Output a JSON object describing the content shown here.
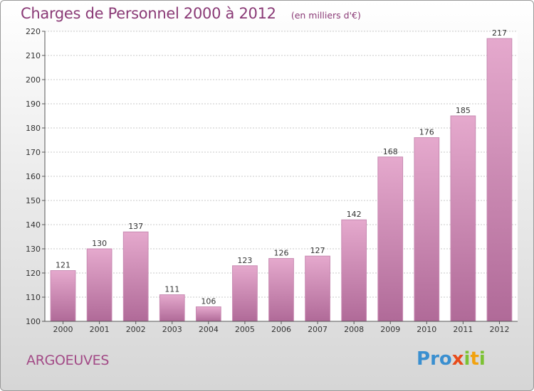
{
  "header": {
    "title": "Charges de Personnel 2000 à 2012",
    "unit": "(en milliers d'€)"
  },
  "footer": {
    "commune": "ARGOEUVES",
    "logo_text": "Proxiti",
    "logo_letters": [
      {
        "ch": "P",
        "color": "#3a8fd0"
      },
      {
        "ch": "r",
        "color": "#3a8fd0"
      },
      {
        "ch": "o",
        "color": "#3a8fd0"
      },
      {
        "ch": "x",
        "color": "#e84b1a"
      },
      {
        "ch": "i",
        "color": "#7cc233"
      },
      {
        "ch": "t",
        "color": "#f2a20f"
      },
      {
        "ch": "i",
        "color": "#7cc233"
      }
    ]
  },
  "colors": {
    "bar_top": "#e5a9cd",
    "bar_bottom": "#b06a98",
    "bar_edge": "#c88ab2",
    "axis": "#555555",
    "grid": "#c8c8c8",
    "plot_bg": "#ffffff",
    "text": "#333333",
    "title": "#8a3a76"
  },
  "chart_data": {
    "type": "bar",
    "title": "Charges de Personnel 2000 à 2012",
    "subtitle": "(en milliers d'€)",
    "categories": [
      "2000",
      "2001",
      "2002",
      "2003",
      "2004",
      "2005",
      "2006",
      "2007",
      "2008",
      "2009",
      "2010",
      "2011",
      "2012"
    ],
    "values": [
      121,
      130,
      137,
      111,
      106,
      123,
      126,
      127,
      142,
      168,
      176,
      185,
      217
    ],
    "ylim": [
      100,
      220
    ],
    "yticks": [
      100,
      110,
      120,
      130,
      140,
      150,
      160,
      170,
      180,
      190,
      200,
      210,
      220
    ],
    "xlabel": "",
    "ylabel": "",
    "grid": true,
    "data_labels": true
  }
}
